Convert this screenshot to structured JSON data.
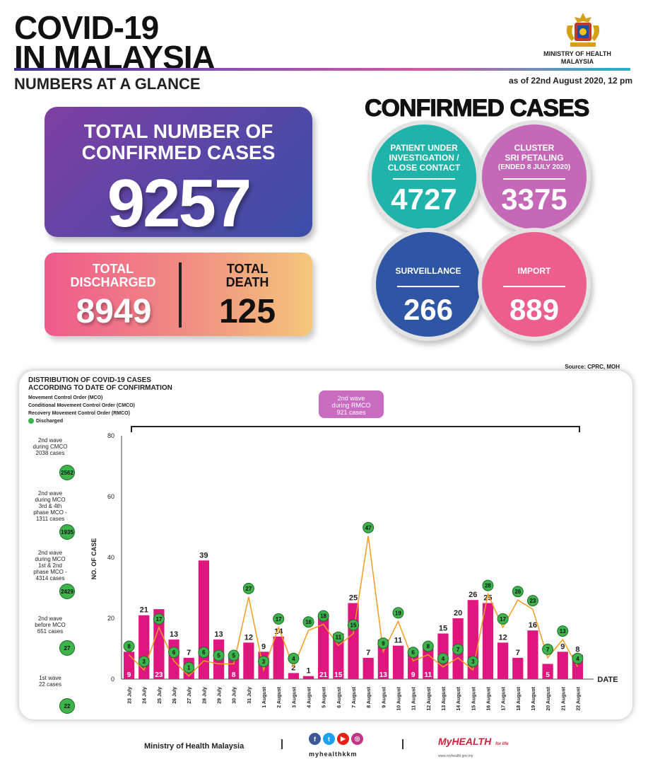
{
  "header": {
    "title_line1": "COVID-19",
    "title_line2": "IN MALAYSIA",
    "subtitle": "NUMBERS AT A GLANCE",
    "as_of": "as of 22nd August 2020, 12 pm",
    "ministry_line1": "MINISTRY OF HEALTH",
    "ministry_line2": "MALAYSIA"
  },
  "total_confirmed": {
    "label_line1": "TOTAL NUMBER OF",
    "label_line2": "CONFIRMED CASES",
    "value": "9257"
  },
  "discharged": {
    "label_line1": "TOTAL",
    "label_line2": "DISCHARGED",
    "value": "8949"
  },
  "death": {
    "label_line1": "TOTAL",
    "label_line2": "DEATH",
    "value": "125"
  },
  "confirmed_cases": {
    "title": "CONFIRMED CASES",
    "pui": {
      "label_line1": "PATIENT UNDER",
      "label_line2": "INVESTIGATION /",
      "label_line3": "CLOSE CONTACT",
      "value": "4727",
      "color": "#1fb3a9"
    },
    "cluster": {
      "label_line1": "CLUSTER",
      "label_line2": "SRI PETALING",
      "label_line3": "(ENDED 8 JULY 2020)",
      "value": "3375",
      "color": "#c468b7"
    },
    "surveillance": {
      "label": "SURVEILLANCE",
      "value": "266",
      "color": "#2f56a5"
    },
    "import": {
      "label": "IMPORT",
      "value": "889",
      "color": "#ec5f8d"
    }
  },
  "source": "Source: CPRC, MOH",
  "distribution": {
    "title_line1": "DISTRIBUTION OF COVID-19 CASES",
    "title_line2": "ACCORDING TO DATE OF CONFIRMATION",
    "legend_mco": "Movement Control Order (MCO)",
    "legend_cmco": "Conditional Movement Control Order (CMCO)",
    "legend_rmco": "Recovery Movement Control Order (RMCO)",
    "legend_discharged": "Discharged",
    "rmco_box_line1": "2nd wave",
    "rmco_box_line2": "during RMCO",
    "rmco_box_line3": "921 cases"
  },
  "waves": [
    {
      "line1": "2nd wave",
      "line2": "during CMCO",
      "line3": "2038 cases",
      "line4": "",
      "line5": "",
      "count": "2562",
      "color": "#2fa8e0"
    },
    {
      "line1": "2nd wave",
      "line2": "during MCO",
      "line3": "3rd & 4th",
      "line4": "phase MCO -",
      "line5": "1311 cases",
      "count": "1935",
      "color": "#1fb3a9"
    },
    {
      "line1": "2nd wave",
      "line2": "during MCO",
      "line3": "1st & 2nd",
      "line4": "phase MCO -",
      "line5": "4314 cases",
      "count": "2429",
      "color": "#f4a234"
    },
    {
      "line1": "2nd wave",
      "line2": "before MCO",
      "line3": "651 cases",
      "line4": "",
      "line5": "",
      "count": "27",
      "color": "#f2887a"
    },
    {
      "line1": "1st wave",
      "line2": "22 cases",
      "line3": "",
      "line4": "",
      "line5": "",
      "count": "22",
      "color": "#ec5f8d"
    }
  ],
  "chart_data": {
    "type": "bar",
    "title": "DISTRIBUTION OF COVID-19 CASES ACCORDING TO DATE OF CONFIRMATION",
    "xlabel": "DATE",
    "ylabel": "NO. OF CASE",
    "ylim": [
      0,
      80
    ],
    "yticks": [
      "0",
      "20",
      "40",
      "60",
      "80"
    ],
    "categories": [
      "23 July",
      "24 July",
      "25 July",
      "26 July",
      "27 July",
      "28 July",
      "29 July",
      "30 July",
      "31 July",
      "1 August",
      "2 August",
      "3 August",
      "4 August",
      "5 August",
      "6 August",
      "7 August",
      "8 August",
      "9 August",
      "10 August",
      "11 August",
      "12 August",
      "13 August",
      "14 August",
      "15 August",
      "16 August",
      "17 August",
      "18 August",
      "19 August",
      "20 August",
      "21 August",
      "22 August"
    ],
    "series": [
      {
        "name": "Confirmed cases",
        "type": "bar",
        "color": "#e0167f",
        "values": [
          9,
          21,
          23,
          13,
          7,
          39,
          13,
          8,
          12,
          9,
          14,
          2,
          1,
          21,
          15,
          25,
          7,
          13,
          11,
          9,
          11,
          15,
          20,
          26,
          25,
          12,
          7,
          16,
          5,
          9,
          8
        ],
        "labels": [
          "9",
          "21",
          "23",
          "13",
          "7",
          "39",
          "13",
          "8",
          "12",
          "9",
          "14",
          "2",
          "1",
          "21",
          "15",
          "25",
          "7",
          "13",
          "11",
          "9",
          "11",
          "15",
          "20",
          "26",
          "25",
          "12",
          "7",
          "16",
          "5",
          "9",
          "8"
        ]
      },
      {
        "name": "Discharged",
        "type": "line",
        "color": "#f39c1f",
        "marker_color": "#3cb44b",
        "values": [
          8,
          3,
          17,
          6,
          1,
          6,
          5,
          5,
          27,
          3,
          17,
          4,
          16,
          18,
          11,
          15,
          47,
          9,
          19,
          6,
          8,
          4,
          7,
          3,
          28,
          17,
          26,
          23,
          7,
          13,
          4
        ],
        "labels": [
          "8",
          "3",
          "17",
          "6",
          "1",
          "6",
          "5",
          "5",
          "27",
          "3",
          "17",
          "4",
          "16",
          "18",
          "11",
          "15",
          "47",
          "9",
          "19",
          "6",
          "8",
          "4",
          "7",
          "3",
          "28",
          "17",
          "26",
          "23",
          "7",
          "13",
          "4"
        ]
      }
    ]
  },
  "footer": {
    "ministry": "Ministry of Health Malaysia",
    "handle": "myhealthkkm",
    "myhealth": "MyHEALTH",
    "myhealth_sub": "for life",
    "myhealth_url": "www.myhealth.gov.my",
    "social_icons": [
      "f",
      "t",
      "▶",
      "◎"
    ]
  }
}
